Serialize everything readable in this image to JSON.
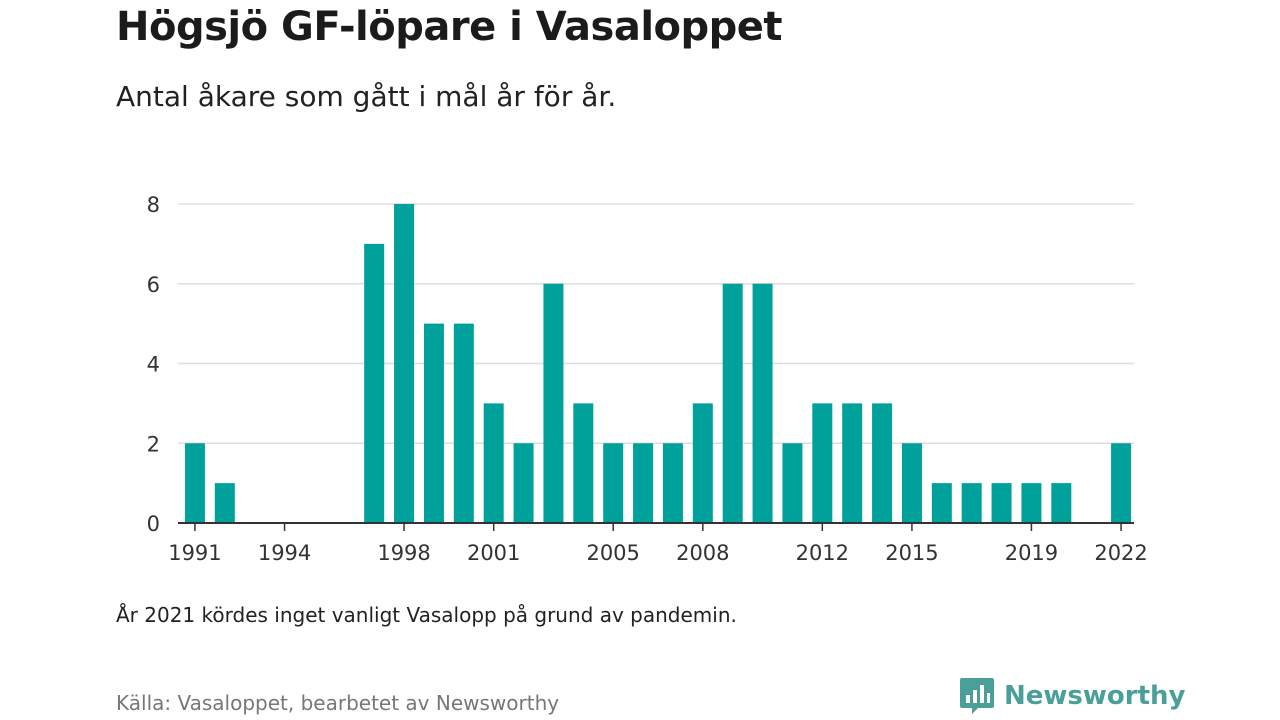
{
  "header": {
    "title": "Högsjö GF-löpare i Vasaloppet",
    "subtitle": "Antal åkare som gått i mål år för år."
  },
  "footer": {
    "note": "År 2021 kördes inget vanligt Vasalopp på grund av pandemin.",
    "source": "Källa: Vasaloppet, bearbetet av Newsworthy",
    "brand": "Newsworthy"
  },
  "colors": {
    "bar": "#00a19a",
    "grid": "#dddddd",
    "axis": "#333333",
    "brand": "#4a9f98"
  },
  "icons": {
    "brand_logo": "bar-chart-speech-bubble-icon"
  },
  "chart_data": {
    "type": "bar",
    "title": "Högsjö GF-löpare i Vasaloppet",
    "subtitle": "Antal åkare som gått i mål år för år.",
    "xlabel": "",
    "ylabel": "",
    "ylim": [
      0,
      8
    ],
    "yticks": [
      0,
      2,
      4,
      6,
      8
    ],
    "grid": true,
    "legend": "none",
    "x": [
      1991,
      1992,
      1993,
      1994,
      1995,
      1996,
      1997,
      1998,
      1999,
      2000,
      2001,
      2002,
      2003,
      2004,
      2005,
      2006,
      2007,
      2008,
      2009,
      2010,
      2011,
      2012,
      2013,
      2014,
      2015,
      2016,
      2017,
      2018,
      2019,
      2020,
      2021,
      2022
    ],
    "values": [
      2,
      1,
      0,
      0,
      0,
      0,
      7,
      8,
      5,
      5,
      3,
      2,
      6,
      3,
      2,
      2,
      2,
      3,
      6,
      6,
      2,
      3,
      3,
      3,
      2,
      1,
      1,
      1,
      1,
      1,
      0,
      2
    ],
    "xtick_labels": [
      "1991",
      "1994",
      "1998",
      "2001",
      "2005",
      "2008",
      "2012",
      "2015",
      "2019",
      "2022"
    ]
  }
}
